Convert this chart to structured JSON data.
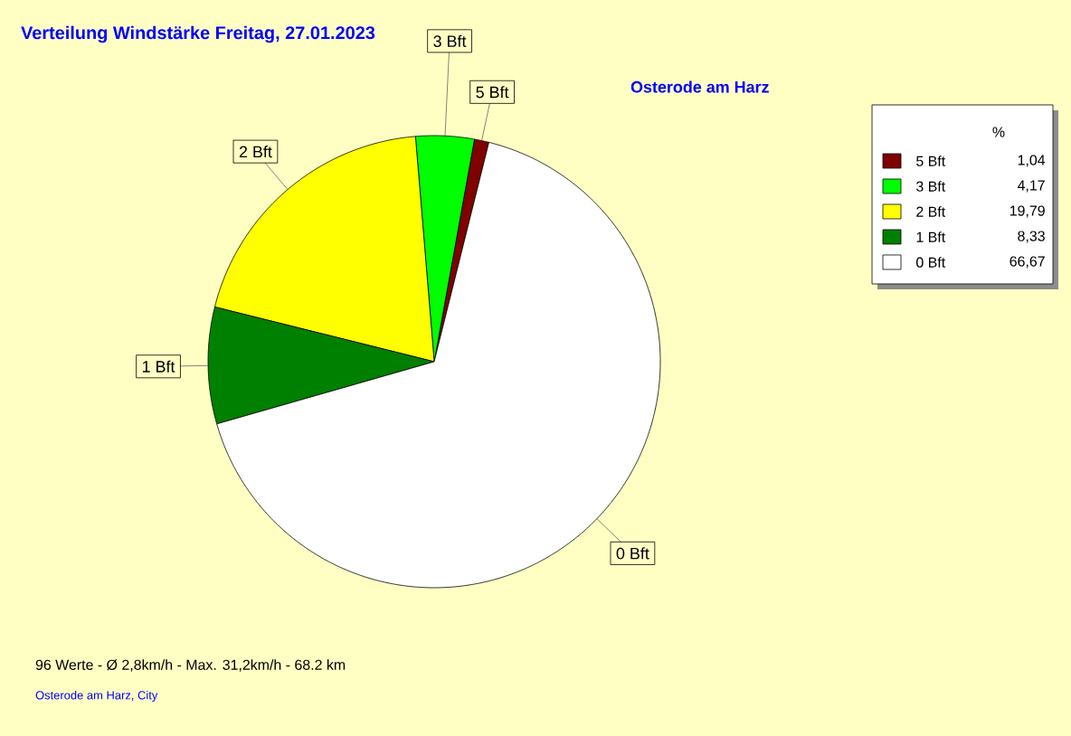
{
  "chart_data": {
    "type": "pie",
    "title": "Verteilung Windstärke  Freitag, 27.01.2023",
    "subtitle": "Osterode am Harz",
    "legend_title": "%",
    "categories": [
      "5 Bft",
      "3 Bft",
      "2 Bft",
      "1 Bft",
      "0 Bft"
    ],
    "values": [
      1.04,
      4.17,
      19.79,
      8.33,
      66.67
    ],
    "value_labels": [
      "1,04",
      "4,17",
      "19,79",
      "8,33",
      "66,67"
    ],
    "colors": [
      "#800000",
      "#00ff00",
      "#ffff00",
      "#008000",
      "#ffffff"
    ],
    "legend": "top right",
    "annotations": [
      "96 Werte  -  Ø 2,8km/h  -  Max. 31,2km/h   -   68.2 km",
      "Osterode am Harz, City"
    ]
  }
}
